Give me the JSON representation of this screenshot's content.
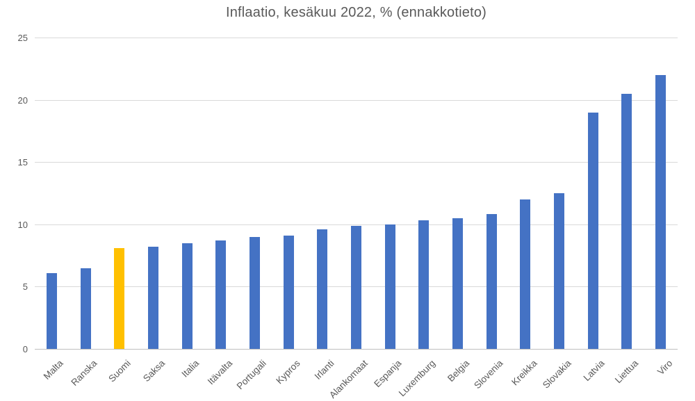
{
  "chart_data": {
    "type": "bar",
    "title": "Inflaatio, kesäkuu 2022, % (ennakkotieto)",
    "categories": [
      "Malta",
      "Ranska",
      "Suomi",
      "Saksa",
      "Italia",
      "Itävalta",
      "Portugali",
      "Kypros",
      "Irlanti",
      "Alankomaat",
      "Espanja",
      "Luxemburg",
      "Belgia",
      "Slovenia",
      "Kreikka",
      "Slovakia",
      "Latvia",
      "Liettua",
      "Viro"
    ],
    "values": [
      6.1,
      6.5,
      8.1,
      8.2,
      8.5,
      8.7,
      9.0,
      9.1,
      9.6,
      9.9,
      10.0,
      10.3,
      10.5,
      10.8,
      12.0,
      12.5,
      19.0,
      20.5,
      22.0
    ],
    "highlighted_category": "Suomi",
    "xlabel": "",
    "ylabel": "",
    "ylim": [
      0,
      25
    ],
    "yticks": [
      0,
      5,
      10,
      15,
      20,
      25
    ],
    "grid": true,
    "legend": false,
    "colors": {
      "bar": "#4472c4",
      "highlight": "#ffc000",
      "text": "#595959",
      "gridline": "#d9d9d9",
      "axis_line": "#bfbfbf",
      "background": "#ffffff"
    }
  }
}
